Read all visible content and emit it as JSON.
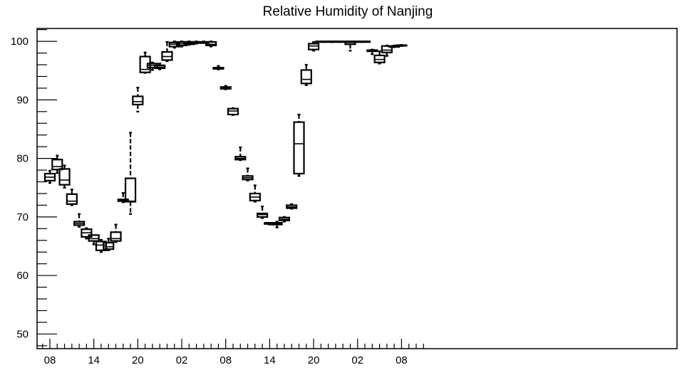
{
  "chart_data": {
    "type": "box",
    "title": "Relative Humidity of Nanjing",
    "xlabel": "",
    "ylabel": "",
    "ylim": [
      47.5,
      102.2
    ],
    "y_ticks": [
      "50",
      "60",
      "70",
      "80",
      "90",
      "100"
    ],
    "x_tick_labels": [
      "08",
      "14",
      "20",
      "02",
      "08",
      "14",
      "20",
      "02",
      "08"
    ],
    "x_tick_hours": [
      0,
      6,
      12,
      18,
      24,
      30,
      36,
      42,
      48
    ],
    "grid": false,
    "legend": "none",
    "colors": {
      "box": "#000000",
      "background": "#ffffff"
    },
    "boxes": [
      {
        "h": 0,
        "min": 75.8,
        "q1": 76.2,
        "median": 76.8,
        "q3": 77.4,
        "max": 77.9
      },
      {
        "h": 1,
        "min": 77.5,
        "q1": 78.1,
        "median": 78.6,
        "q3": 79.8,
        "max": 80.5
      },
      {
        "h": 2,
        "min": 75.0,
        "q1": 75.5,
        "median": 76.3,
        "q3": 78.2,
        "max": 78.8
      },
      {
        "h": 3,
        "min": 72.0,
        "q1": 72.2,
        "median": 72.7,
        "q3": 73.9,
        "max": 74.7
      },
      {
        "h": 4,
        "min": 68.3,
        "q1": 68.6,
        "median": 68.9,
        "q3": 69.2,
        "max": 70.5
      },
      {
        "h": 5,
        "min": 66.3,
        "q1": 66.6,
        "median": 67.3,
        "q3": 67.9,
        "max": 68.1
      },
      {
        "h": 6,
        "min": 65.3,
        "q1": 65.9,
        "median": 66.3,
        "q3": 66.9,
        "max": 66.9
      },
      {
        "h": 7,
        "min": 64.0,
        "q1": 64.3,
        "median": 65.2,
        "q3": 65.8,
        "max": 66.1
      },
      {
        "h": 8,
        "min": 64.3,
        "q1": 64.5,
        "median": 64.9,
        "q3": 65.6,
        "max": 66.3
      },
      {
        "h": 9,
        "min": 65.7,
        "q1": 65.9,
        "median": 66.3,
        "q3": 67.4,
        "max": 68.7
      },
      {
        "h": 10,
        "min": 72.5,
        "q1": 72.7,
        "median": 72.9,
        "q3": 73.0,
        "max": 74.1
      },
      {
        "h": 11,
        "min": 70.5,
        "q1": 72.6,
        "median": 72.7,
        "q3": 76.6,
        "max": 84.4
      },
      {
        "h": 12,
        "min": 88.0,
        "q1": 89.2,
        "median": 89.7,
        "q3": 90.6,
        "max": 92.1
      },
      {
        "h": 13,
        "min": 94.6,
        "q1": 94.7,
        "median": 95.2,
        "q3": 97.4,
        "max": 98.1
      },
      {
        "h": 14,
        "min": 95.1,
        "q1": 95.5,
        "median": 95.9,
        "q3": 96.2,
        "max": 96.4
      },
      {
        "h": 15,
        "min": 95.2,
        "q1": 95.4,
        "median": 95.6,
        "q3": 95.9,
        "max": 96.2
      },
      {
        "h": 16,
        "min": 96.6,
        "q1": 96.8,
        "median": 97.4,
        "q3": 98.2,
        "max": 99.9
      },
      {
        "h": 17,
        "min": 98.9,
        "q1": 99.1,
        "median": 99.5,
        "q3": 99.8,
        "max": 100.0
      },
      {
        "h": 18,
        "min": 99.1,
        "q1": 99.3,
        "median": 99.6,
        "q3": 99.9,
        "max": 100.0
      },
      {
        "h": 19,
        "min": 99.4,
        "q1": 99.5,
        "median": 99.7,
        "q3": 99.9,
        "max": 100.0
      },
      {
        "h": 20,
        "min": 99.6,
        "q1": 99.7,
        "median": 99.8,
        "q3": 99.9,
        "max": 100.0
      },
      {
        "h": 21,
        "min": 99.7,
        "q1": 99.75,
        "median": 99.8,
        "q3": 99.9,
        "max": 100.0
      },
      {
        "h": 22,
        "min": 99.1,
        "q1": 99.3,
        "median": 99.5,
        "q3": 99.9,
        "max": 100.0
      },
      {
        "h": 23,
        "min": 95.2,
        "q1": 95.3,
        "median": 95.4,
        "q3": 95.5,
        "max": 95.8
      },
      {
        "h": 24,
        "min": 91.8,
        "q1": 91.9,
        "median": 92.1,
        "q3": 92.2,
        "max": 92.4
      },
      {
        "h": 25,
        "min": 87.4,
        "q1": 87.5,
        "median": 88.1,
        "q3": 88.5,
        "max": 88.6
      },
      {
        "h": 26,
        "min": 79.7,
        "q1": 79.8,
        "median": 80.0,
        "q3": 80.3,
        "max": 81.9
      },
      {
        "h": 27,
        "min": 76.2,
        "q1": 76.4,
        "median": 76.7,
        "q3": 77.0,
        "max": 78.3
      },
      {
        "h": 28,
        "min": 72.6,
        "q1": 72.8,
        "median": 73.4,
        "q3": 74.0,
        "max": 75.4
      },
      {
        "h": 29,
        "min": 69.8,
        "q1": 70.0,
        "median": 70.4,
        "q3": 70.6,
        "max": 71.8
      },
      {
        "h": 30,
        "min": 68.7,
        "q1": 68.8,
        "median": 68.9,
        "q3": 69.0,
        "max": 69.0
      },
      {
        "h": 31,
        "min": 68.2,
        "q1": 68.7,
        "median": 68.8,
        "q3": 69.0,
        "max": 69.2
      },
      {
        "h": 32,
        "min": 69.2,
        "q1": 69.4,
        "median": 69.6,
        "q3": 69.9,
        "max": 70.0
      },
      {
        "h": 33,
        "min": 71.4,
        "q1": 71.5,
        "median": 71.7,
        "q3": 72.0,
        "max": 72.2
      },
      {
        "h": 34,
        "min": 77.0,
        "q1": 77.4,
        "median": 82.5,
        "q3": 86.2,
        "max": 87.5
      },
      {
        "h": 35,
        "min": 92.5,
        "q1": 92.8,
        "median": 93.5,
        "q3": 95.1,
        "max": 96.0
      },
      {
        "h": 36,
        "min": 98.4,
        "q1": 98.6,
        "median": 99.2,
        "q3": 99.6,
        "max": 99.9
      },
      {
        "h": 37,
        "min": 99.9,
        "q1": 99.95,
        "median": 100.0,
        "q3": 100.0,
        "max": 100.0
      },
      {
        "h": 38,
        "min": 99.9,
        "q1": 99.95,
        "median": 100.0,
        "q3": 100.0,
        "max": 100.0
      },
      {
        "h": 39,
        "min": 99.9,
        "q1": 99.95,
        "median": 100.0,
        "q3": 100.0,
        "max": 100.0
      },
      {
        "h": 40,
        "min": 99.9,
        "q1": 99.95,
        "median": 100.0,
        "q3": 100.0,
        "max": 100.0
      },
      {
        "h": 41,
        "min": 98.4,
        "q1": 99.5,
        "median": 99.8,
        "q3": 100.0,
        "max": 100.0
      },
      {
        "h": 42,
        "min": 99.9,
        "q1": 99.95,
        "median": 100.0,
        "q3": 100.0,
        "max": 100.0
      },
      {
        "h": 43,
        "min": 99.9,
        "q1": 99.95,
        "median": 100.0,
        "q3": 100.0,
        "max": 100.0
      },
      {
        "h": 44,
        "min": 97.8,
        "q1": 98.3,
        "median": 98.4,
        "q3": 98.5,
        "max": 98.6
      },
      {
        "h": 45,
        "min": 96.2,
        "q1": 96.4,
        "median": 96.9,
        "q3": 97.6,
        "max": 98.3
      },
      {
        "h": 46,
        "min": 97.5,
        "q1": 98.1,
        "median": 98.5,
        "q3": 99.2,
        "max": 99.3
      },
      {
        "h": 47,
        "min": 99.0,
        "q1": 99.05,
        "median": 99.1,
        "q3": 99.2,
        "max": 99.3
      },
      {
        "h": 48,
        "min": 99.2,
        "q1": 99.25,
        "median": 99.3,
        "q3": 99.35,
        "max": 99.4
      }
    ]
  }
}
